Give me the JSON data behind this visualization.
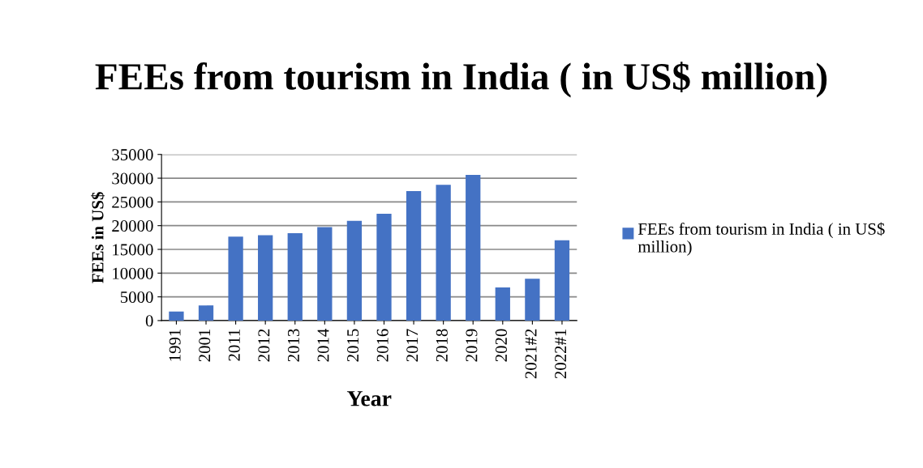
{
  "chart_data": {
    "type": "bar",
    "title": "FEEs from tourism in India ( in US$ million)",
    "xlabel": "Year",
    "ylabel": "FEEs in US$",
    "categories": [
      "1991",
      "2001",
      "2011",
      "2012",
      "2013",
      "2014",
      "2015",
      "2016",
      "2017",
      "2018",
      "2019",
      "2020",
      "2021#2",
      "2022#1"
    ],
    "series": [
      {
        "name": "FEEs from tourism in India ( in US$ million)",
        "color": "#4472c4",
        "values": [
          1900,
          3200,
          17700,
          18000,
          18400,
          19700,
          21000,
          22500,
          27300,
          28600,
          30700,
          7000,
          8800,
          16900
        ]
      }
    ],
    "ylim": [
      0,
      35000
    ],
    "yticks": [
      0,
      5000,
      10000,
      15000,
      20000,
      25000,
      30000,
      35000
    ],
    "grid": "y",
    "legend": "right"
  }
}
